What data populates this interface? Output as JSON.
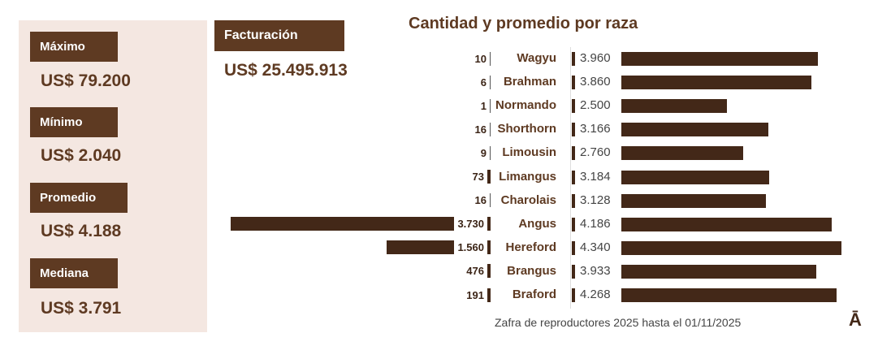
{
  "stats": [
    {
      "label": "Máximo",
      "value": "US$ 79.200"
    },
    {
      "label": "Mínimo",
      "value": "US$ 2.040"
    },
    {
      "label": "Promedio",
      "value": "US$ 4.188"
    },
    {
      "label": "Mediana",
      "value": "US$ 3.791"
    }
  ],
  "billing": {
    "label": "Facturación",
    "value": "US$ 25.495.913"
  },
  "footer": "Zafra de reproductores 2025 hasta el  01/11/2025",
  "logo": "Ā",
  "colors": {
    "bar": "#432818",
    "label_box": "#5e3a22",
    "panel": "#f4e7e1"
  },
  "chart_data": {
    "type": "bar",
    "title": "Cantidad y promedio por raza",
    "categories": [
      "Wagyu",
      "Brahman",
      "Normando",
      "Shorthorn",
      "Limousin",
      "Limangus",
      "Charolais",
      "Angus",
      "Hereford",
      "Brangus",
      "Braford"
    ],
    "series": [
      {
        "values": [
          10,
          6,
          1,
          16,
          9,
          73,
          16,
          3730,
          1560,
          476,
          191
        ],
        "labels": [
          "10",
          "6",
          "1",
          "16",
          "9",
          "73",
          "16",
          "3.730",
          "1.560",
          "476",
          "191"
        ]
      },
      {
        "values": [
          3960,
          3860,
          2500,
          3166,
          2760,
          3184,
          3128,
          4186,
          4340,
          3933,
          4268
        ],
        "labels": [
          "3.960",
          "3.860",
          "2.500",
          "3.166",
          "2.760",
          "3.184",
          "3.128",
          "4.186",
          "4.340",
          "3.933",
          "4.268"
        ]
      }
    ]
  }
}
